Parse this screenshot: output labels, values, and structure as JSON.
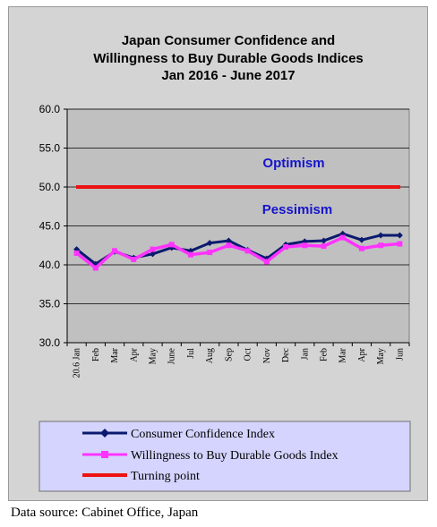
{
  "chart_data": {
    "type": "line",
    "title": [
      "Japan Consumer Confidence and",
      "Willingness to Buy Durable Goods Indices",
      "Jan 2016 - June 2017"
    ],
    "xlabel": "",
    "ylabel": "",
    "ylim": [
      30,
      60
    ],
    "yticks": [
      "60.0",
      "55.0",
      "50.0",
      "45.0",
      "40.0",
      "35.0",
      "30.0"
    ],
    "ytick_values": [
      60,
      55,
      50,
      45,
      40,
      35,
      30
    ],
    "categories": [
      "20.6 Jan",
      "Feb",
      "Mar",
      "Apr",
      "May",
      "June",
      "Jul",
      "Aug",
      "Sep",
      "Oct",
      "Nov",
      "Dec",
      "Jan",
      "Feb",
      "Mar",
      "Apr",
      "May",
      "Jun"
    ],
    "series": [
      {
        "name": "Consumer Confidence Index",
        "color": "#0a1a6e",
        "marker": "diamond",
        "values": [
          42.0,
          40.1,
          41.7,
          40.9,
          41.4,
          42.2,
          41.8,
          42.8,
          43.1,
          41.9,
          40.8,
          42.6,
          43.0,
          43.1,
          44.0,
          43.2,
          43.8,
          43.8
        ]
      },
      {
        "name": "Willingness to Buy Durable Goods Index",
        "color": "#ff33ff",
        "marker": "square",
        "values": [
          41.5,
          39.6,
          41.8,
          40.7,
          42.0,
          42.6,
          41.3,
          41.6,
          42.5,
          41.8,
          40.4,
          42.3,
          42.5,
          42.4,
          43.5,
          42.1,
          42.5,
          42.7
        ]
      },
      {
        "name": "Turning point",
        "color": "#ee1111",
        "marker": "none",
        "values": [
          50,
          50,
          50,
          50,
          50,
          50,
          50,
          50,
          50,
          50,
          50,
          50,
          50,
          50,
          50,
          50,
          50,
          50
        ]
      }
    ],
    "annotations": [
      "Optimism",
      "Pessimism"
    ],
    "grid": true,
    "legend": "bottom",
    "plot_background": "#c0c0c0"
  },
  "source": "Data source: Cabinet Office, Japan"
}
